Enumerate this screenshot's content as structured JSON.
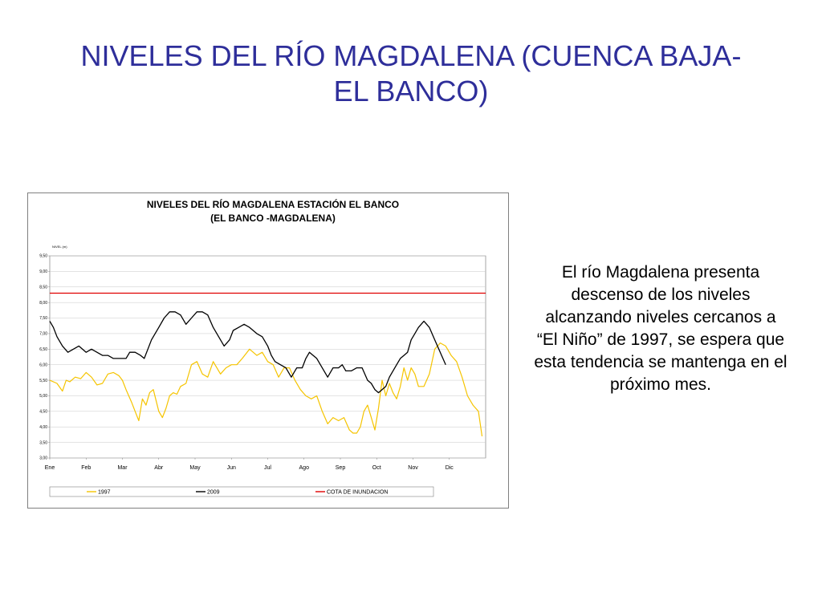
{
  "slide": {
    "title": "NIVELES DEL RÍO MAGDALENA (CUENCA BAJA- EL BANCO)",
    "description": "El río Magdalena presenta descenso de los niveles alcanzando niveles cercanos a “El Niño” de 1997, se espera que esta tendencia se mantenga en el próximo mes."
  },
  "chart_data": {
    "type": "line",
    "title_lines": [
      "NIVELES DEL RÍO MAGDALENA ESTACIÓN EL BANCO",
      "(EL BANCO -MAGDALENA)"
    ],
    "ylabel": "NIVEL (m)",
    "ylim": [
      3.0,
      9.5
    ],
    "yticks": [
      "3,00",
      "3,50",
      "4,00",
      "4,50",
      "5,00",
      "5,50",
      "6,00",
      "6,50",
      "7,00",
      "7,50",
      "8,00",
      "8,50",
      "9,00",
      "9,50"
    ],
    "xlim": [
      0,
      12
    ],
    "months": [
      "Ene",
      "Feb",
      "Mar",
      "Abr",
      "May",
      "Jun",
      "Jul",
      "Ago",
      "Sep",
      "Oct",
      "Nov",
      "Dic"
    ],
    "grid": true,
    "legend_position": "bottom",
    "colors": {
      "1997": "#f5c400",
      "2009": "#000000",
      "cota": "#e00000"
    },
    "cota_inundacion": 8.3,
    "series": [
      {
        "name": "1997",
        "x": [
          0,
          0.2,
          0.35,
          0.45,
          0.55,
          0.7,
          0.85,
          1.0,
          1.15,
          1.3,
          1.45,
          1.6,
          1.75,
          1.9,
          2.0,
          2.1,
          2.25,
          2.35,
          2.45,
          2.55,
          2.65,
          2.75,
          2.85,
          3.0,
          3.1,
          3.2,
          3.3,
          3.4,
          3.5,
          3.6,
          3.75,
          3.9,
          4.05,
          4.2,
          4.35,
          4.5,
          4.7,
          4.85,
          5.0,
          5.15,
          5.3,
          5.5,
          5.7,
          5.85,
          6.0,
          6.15,
          6.3,
          6.45,
          6.6,
          6.75,
          6.9,
          7.05,
          7.2,
          7.35,
          7.5,
          7.65,
          7.8,
          7.95,
          8.1,
          8.25,
          8.35,
          8.45,
          8.55,
          8.65,
          8.75,
          8.85,
          8.95,
          9.05,
          9.15,
          9.25,
          9.35,
          9.45,
          9.55,
          9.65,
          9.75,
          9.85,
          9.95,
          10.05,
          10.15,
          10.3,
          10.45,
          10.6,
          10.75,
          10.9,
          11.05,
          11.2,
          11.35,
          11.5,
          11.65,
          11.8,
          11.9
        ],
        "values": [
          5.5,
          5.4,
          5.15,
          5.5,
          5.45,
          5.6,
          5.55,
          5.75,
          5.6,
          5.35,
          5.4,
          5.7,
          5.75,
          5.65,
          5.5,
          5.2,
          4.8,
          4.5,
          4.2,
          4.9,
          4.7,
          5.1,
          5.2,
          4.5,
          4.3,
          4.6,
          5.0,
          5.1,
          5.05,
          5.3,
          5.4,
          6.0,
          6.1,
          5.7,
          5.6,
          6.1,
          5.7,
          5.9,
          6.0,
          6.0,
          6.2,
          6.5,
          6.3,
          6.4,
          6.1,
          6.0,
          5.6,
          5.9,
          5.9,
          5.5,
          5.2,
          5.0,
          4.9,
          5.0,
          4.5,
          4.1,
          4.3,
          4.2,
          4.3,
          3.9,
          3.8,
          3.8,
          4.0,
          4.5,
          4.7,
          4.3,
          3.9,
          4.6,
          5.5,
          5.0,
          5.4,
          5.1,
          4.9,
          5.3,
          5.9,
          5.5,
          5.9,
          5.7,
          5.3,
          5.3,
          5.7,
          6.5,
          6.7,
          6.6,
          6.3,
          6.1,
          5.6,
          5.0,
          4.7,
          4.5,
          3.7
        ]
      },
      {
        "name": "2009",
        "x": [
          0,
          0.1,
          0.2,
          0.35,
          0.5,
          0.65,
          0.8,
          0.9,
          1.0,
          1.15,
          1.3,
          1.45,
          1.6,
          1.75,
          1.9,
          2.0,
          2.1,
          2.2,
          2.35,
          2.5,
          2.6,
          2.7,
          2.8,
          3.0,
          3.15,
          3.3,
          3.45,
          3.6,
          3.75,
          3.9,
          4.05,
          4.2,
          4.35,
          4.5,
          4.65,
          4.8,
          4.95,
          5.05,
          5.2,
          5.35,
          5.5,
          5.7,
          5.85,
          6.0,
          6.1,
          6.2,
          6.35,
          6.5,
          6.65,
          6.8,
          6.95,
          7.05,
          7.15,
          7.25,
          7.35,
          7.5,
          7.65,
          7.8,
          7.95,
          8.05,
          8.15,
          8.3,
          8.45,
          8.6,
          8.75,
          8.85,
          8.95,
          9.05,
          9.15,
          9.25,
          9.35,
          9.45,
          9.55,
          9.65,
          9.75,
          9.85,
          9.95,
          10.05,
          10.15,
          10.3,
          10.45,
          10.6,
          10.75,
          10.9
        ],
        "values": [
          7.4,
          7.2,
          6.9,
          6.6,
          6.4,
          6.5,
          6.6,
          6.5,
          6.4,
          6.5,
          6.4,
          6.3,
          6.3,
          6.2,
          6.2,
          6.2,
          6.2,
          6.4,
          6.4,
          6.3,
          6.2,
          6.5,
          6.8,
          7.2,
          7.5,
          7.7,
          7.7,
          7.6,
          7.3,
          7.5,
          7.7,
          7.7,
          7.6,
          7.2,
          6.9,
          6.6,
          6.8,
          7.1,
          7.2,
          7.3,
          7.2,
          7.0,
          6.9,
          6.6,
          6.3,
          6.1,
          6.0,
          5.9,
          5.6,
          5.9,
          5.9,
          6.2,
          6.4,
          6.3,
          6.2,
          5.9,
          5.6,
          5.9,
          5.9,
          6.0,
          5.8,
          5.8,
          5.9,
          5.9,
          5.5,
          5.4,
          5.2,
          5.1,
          5.2,
          5.3,
          5.6,
          5.8,
          6.0,
          6.2,
          6.3,
          6.4,
          6.8,
          7.0,
          7.2,
          7.4,
          7.2,
          6.8,
          6.4,
          6.0
        ]
      }
    ],
    "legend": [
      {
        "key": "1997",
        "label": "1997"
      },
      {
        "key": "2009",
        "label": "2009"
      },
      {
        "key": "cota",
        "label": "COTA DE INUNDACION"
      }
    ]
  }
}
